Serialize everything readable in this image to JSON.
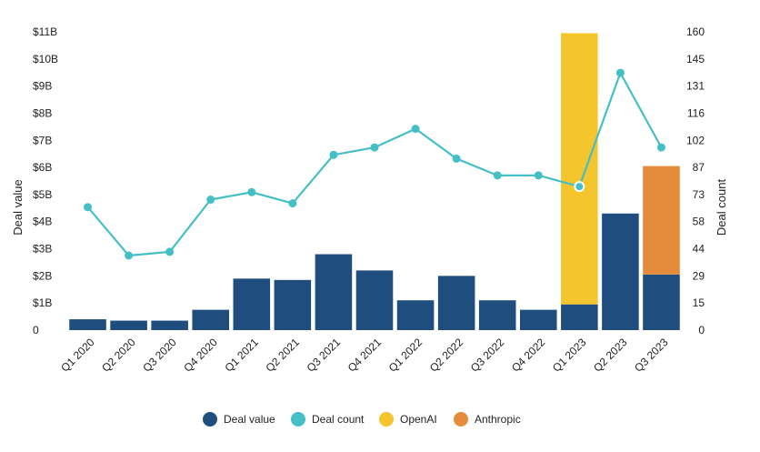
{
  "chart_data": {
    "type": "bar+line",
    "categories": [
      "Q1 2020",
      "Q2 2020",
      "Q3 2020",
      "Q4 2020",
      "Q1 2021",
      "Q2 2021",
      "Q3 2021",
      "Q4 2021",
      "Q1 2022",
      "Q2 2022",
      "Q3 2022",
      "Q4 2022",
      "Q1 2023",
      "Q2 2023",
      "Q3 2023"
    ],
    "series": [
      {
        "name": "Deal value",
        "kind": "bar",
        "axis": "left",
        "color": "#1f4e7e",
        "values": [
          0.4,
          0.35,
          0.35,
          0.75,
          1.9,
          1.85,
          2.8,
          2.2,
          1.1,
          2.0,
          1.1,
          0.75,
          0.95,
          4.3,
          2.05
        ]
      },
      {
        "name": "OpenAI",
        "kind": "stack",
        "axis": "left",
        "color": "#f4c52d",
        "values": [
          0,
          0,
          0,
          0,
          0,
          0,
          0,
          0,
          0,
          0,
          0,
          0,
          10.0,
          0,
          0
        ]
      },
      {
        "name": "Anthropic",
        "kind": "stack",
        "axis": "left",
        "color": "#e58c3c",
        "values": [
          0,
          0,
          0,
          0,
          0,
          0,
          0,
          0,
          0,
          0,
          0,
          0,
          0,
          0,
          4.0
        ]
      },
      {
        "name": "Deal count",
        "kind": "line",
        "axis": "right",
        "color": "#45bfc6",
        "values": [
          66,
          40,
          42,
          70,
          74,
          68,
          94,
          98,
          108,
          92,
          83,
          83,
          77,
          138,
          98
        ]
      }
    ],
    "y_left": {
      "label": "Deal value",
      "ylim": [
        0,
        11
      ],
      "ticks": [
        0,
        1,
        2,
        3,
        4,
        5,
        6,
        7,
        8,
        9,
        10,
        11
      ],
      "tick_labels": [
        "0",
        "$1B",
        "$2B",
        "$3B",
        "$4B",
        "$5B",
        "$6B",
        "$7B",
        "$8B",
        "$9B",
        "$10B",
        "$11B"
      ]
    },
    "y_right": {
      "label": "Deal count",
      "ylim": [
        0,
        160
      ],
      "ticks": [
        0,
        15,
        29,
        44,
        58,
        73,
        87,
        102,
        116,
        131,
        145,
        160
      ],
      "tick_labels": [
        "0",
        "15",
        "29",
        "44",
        "58",
        "73",
        "87",
        "102",
        "116",
        "131",
        "145",
        "160"
      ]
    },
    "highlighted_point": 12,
    "grid": false,
    "legend_position": "bottom-center",
    "legend": [
      {
        "label": "Deal value",
        "color": "#1f4e7e"
      },
      {
        "label": "Deal count",
        "color": "#45bfc6"
      },
      {
        "label": "OpenAI",
        "color": "#f4c52d"
      },
      {
        "label": "Anthropic",
        "color": "#e58c3c"
      }
    ]
  }
}
